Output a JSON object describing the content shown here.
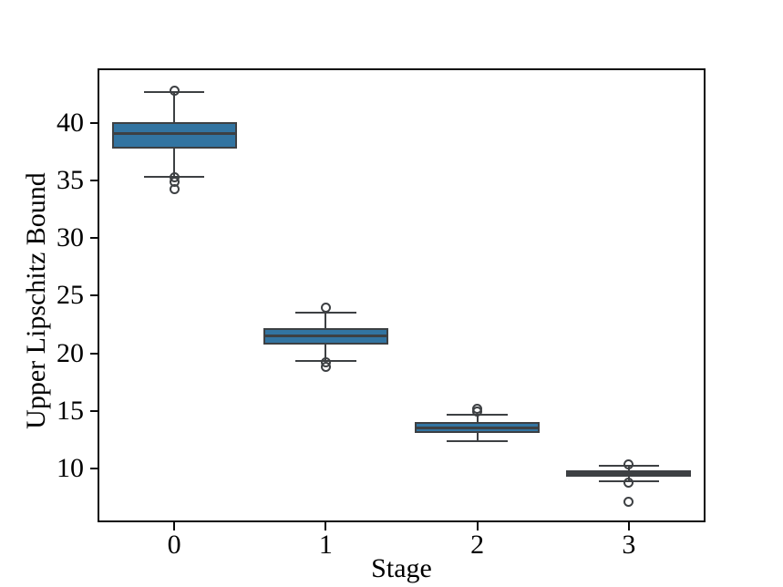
{
  "chart_data": {
    "type": "box",
    "title": "",
    "xlabel": "Stage",
    "ylabel": "Upper Lipschitz Bound",
    "categories": [
      "0",
      "1",
      "2",
      "3"
    ],
    "xlim": [
      -0.5,
      3.5
    ],
    "ylim": [
      5.4,
      44.67
    ],
    "yticks": [
      10,
      15,
      20,
      25,
      30,
      35,
      40
    ],
    "grid": false,
    "legend": null,
    "box_width_fraction": 0.8,
    "cap_width_fraction": 0.4,
    "flier_marker": "open-circle",
    "colors": {
      "box_fill": "#3274a1",
      "line": "#3d4043",
      "spine": "#0a0a0a",
      "background": "#ffffff"
    },
    "boxes": [
      {
        "category": "0",
        "whisker_low": 35.3,
        "q1": 37.95,
        "median": 39.1,
        "q3": 39.9,
        "whisker_high": 42.7,
        "outliers": [
          42.8,
          35.25,
          34.9,
          34.25
        ]
      },
      {
        "category": "1",
        "whisker_low": 19.3,
        "q1": 20.9,
        "median": 21.5,
        "q3": 22.0,
        "whisker_high": 23.5,
        "outliers": [
          24.0,
          19.2,
          18.85
        ]
      },
      {
        "category": "2",
        "whisker_low": 12.35,
        "q1": 13.2,
        "median": 13.5,
        "q3": 13.85,
        "whisker_high": 14.7,
        "outliers": [
          15.2,
          14.95
        ]
      },
      {
        "category": "3",
        "whisker_low": 8.9,
        "q1": 9.4,
        "median": 9.55,
        "q3": 9.7,
        "whisker_high": 10.25,
        "outliers": [
          10.35,
          8.8,
          7.1
        ]
      }
    ]
  }
}
